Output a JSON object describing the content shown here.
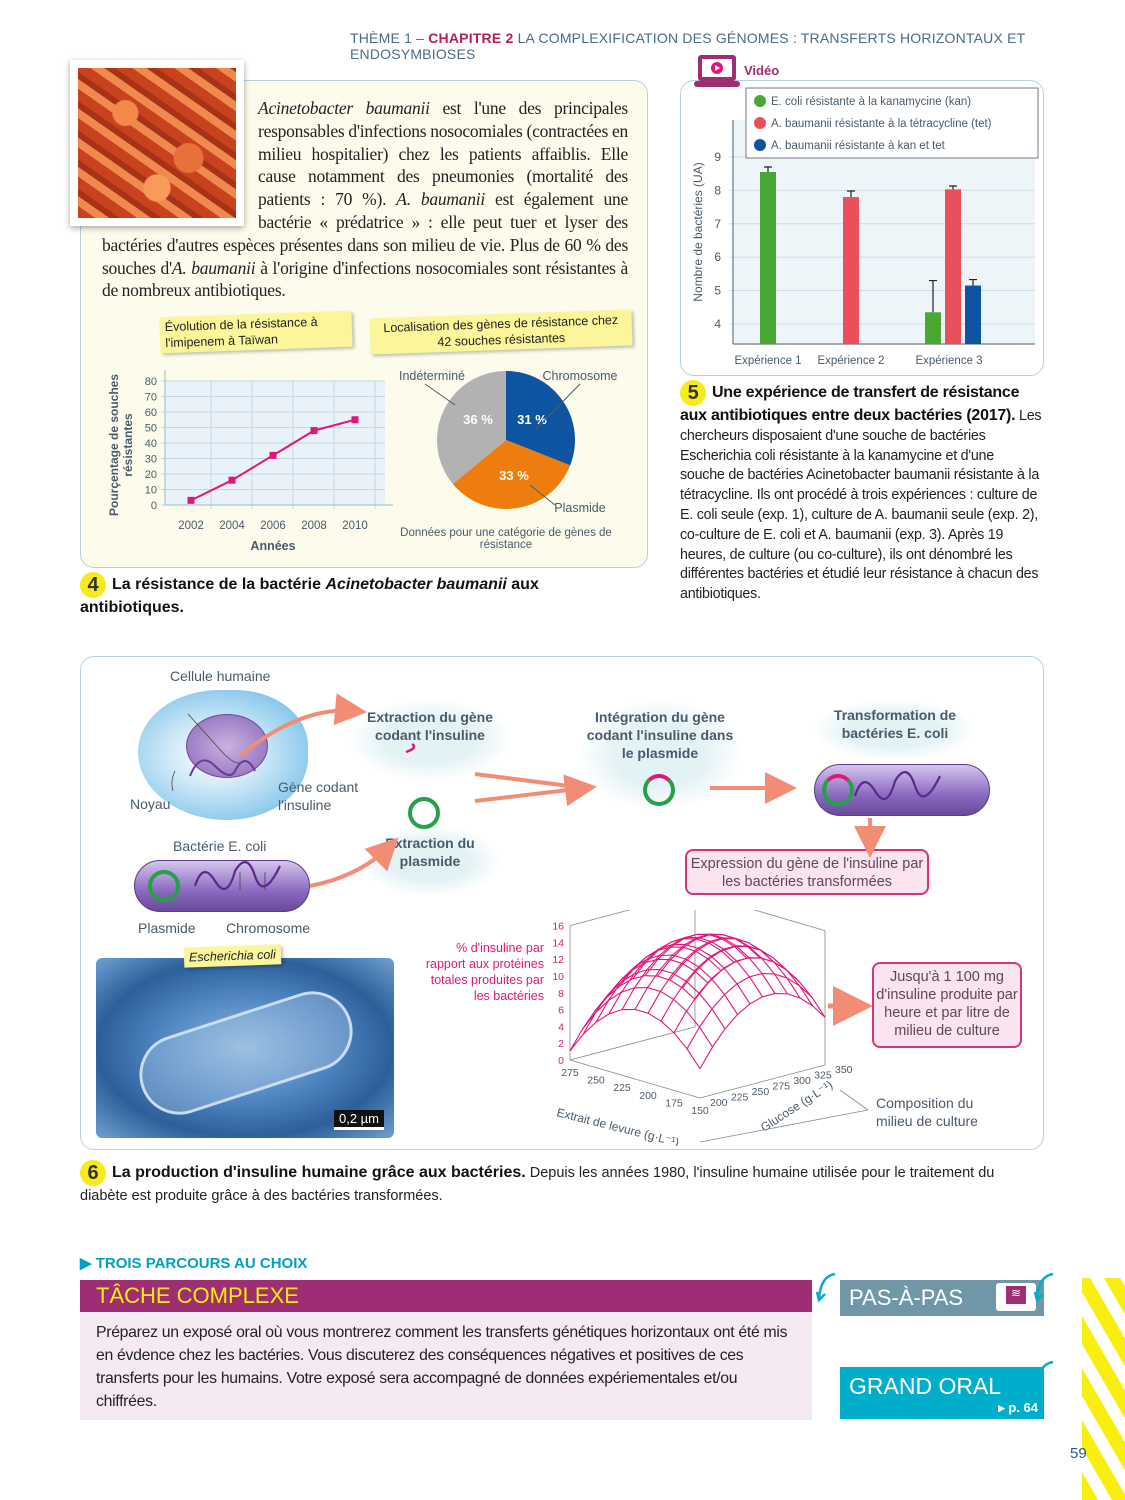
{
  "header": {
    "theme": "THÈME 1 – ",
    "chapter": "CHAPITRE 2",
    "title": " LA COMPLEXIFICATION DES GÉNOMES : TRANSFERTS HORIZONTAUX ET ENDOSYMBIOSES"
  },
  "doc4": {
    "text_parts": [
      "Acinetobacter baumanii",
      "est l'une des principales responsables d'infections nosocomiales (contractées en milieu hospitalier) chez les patients affaiblis. Elle cause notamment des pneumonies (mortalité des patients : 70 %).",
      "A. baumanii",
      "est également une bactérie « prédatrice » : elle peut tuer et lyser des bactéries d'autres espèces présentes dans son milieu de vie. Plus de 60 % des souches d'",
      "A. baumanii",
      "à l'origine d'infections nosocomiales sont résistantes à de nombreux antibiotiques."
    ],
    "number": "4",
    "caption_pre": "La résistance de la bactérie ",
    "caption_italic": "Acinetobacter baumanii",
    "caption_post": " aux antibiotiques."
  },
  "doc5": {
    "video_label": "Vidéo",
    "number": "5",
    "caption_bold": "Une expérience de transfert de résistance aux antibiotiques entre deux bactéries (2017).",
    "text": "Les chercheurs disposaient d'une souche de bactéries Escherichia coli résistante à la kanamycine et d'une souche de bactéries Acinetobacter baumanii résistante à la tétracycline. Ils ont procédé à trois expériences : culture de E. coli seule (exp. 1), culture de A. baumanii seule (exp. 2), co-culture de E. coli et A. baumanii (exp. 3). Après 19 heures, de culture (ou co-culture), ils ont dénombré les différentes bactéries et étudié leur résistance à chacun des antibiotiques."
  },
  "doc6": {
    "labels": {
      "cellule": "Cellule humaine",
      "noyau": "Noyau",
      "gene": "Gène codant l'insuline",
      "bacterie": "Bactérie E. coli",
      "plasmide": "Plasmide",
      "chromosome": "Chromosome",
      "photo_tag": "Escherichia coli",
      "scale": "0,2 µm"
    },
    "steps": {
      "extraction_gene": "Extraction du gène codant l'insuline",
      "extraction_plasmide": "Extraction du plasmide",
      "integration": "Intégration du gène codant l'insuline dans le plasmide",
      "transformation": "Transformation de bactéries E. coli",
      "expression": "Expression du gène de l'insuline par les bactéries transformées"
    },
    "result_box": "Jusqu'à 1 100 mg d'insuline produite par heure et par litre de milieu de culture",
    "composition": "Composition du milieu de culture",
    "number": "6",
    "caption_bold": "La production d'insuline humaine grâce aux bactéries.",
    "caption_text": " Depuis les années 1980, l'insuline humaine utilisée pour le traitement du diabète est produite grâce à des bactéries transformées."
  },
  "tasks": {
    "parcours": "TROIS PARCOURS AU CHOIX",
    "title": "TÂCHE COMPLEXE",
    "text": "Préparez un exposé oral où vous montrerez comment les transferts génétiques horizontaux ont été mis en évdence chez les bactéries. Vous discuterez des conséquences négatives et positives de ces transferts pour les humains. Votre exposé sera accompagné de données expériementales et/ou chiffrées.",
    "pas_a_pas": "PAS-À-PAS",
    "grand_oral": "GRAND ORAL",
    "grand_oral_ref": "▸ p. 64"
  },
  "page_number": "59",
  "colors": {
    "magenta": "#e0177a",
    "green": "#4aa832",
    "red": "#ea4f5a",
    "blue": "#0d55a0",
    "orange": "#ee7d0f",
    "gray": "#b2b2b2",
    "purple": "#9e2d73",
    "cyan": "#00aecb"
  },
  "chart_data": [
    {
      "type": "line",
      "title": "Évolution de la résistance à l'imipenem à Taïwan",
      "xlabel": "Années",
      "ylabel": "Pourçentage de souches résistantes",
      "x": [
        2002,
        2004,
        2006,
        2008,
        2010
      ],
      "y": [
        3,
        16,
        32,
        48,
        55
      ],
      "ylim": [
        0,
        80
      ],
      "yticks": [
        0,
        10,
        20,
        30,
        40,
        50,
        60,
        70,
        80
      ],
      "grid": true,
      "color": "#e0177a"
    },
    {
      "type": "pie",
      "title": "Localisation des gènes de résistance chez 42 souches résistantes",
      "note": "Données pour une catégorie de gènes de résistance",
      "slices": [
        {
          "label": "Chromosome",
          "value": 31,
          "text": "31 %",
          "color": "#0d55a0"
        },
        {
          "label": "Plasmide",
          "value": 33,
          "text": "33 %",
          "color": "#ee7d0f"
        },
        {
          "label": "Indéterminé",
          "value": 36,
          "text": "36 %",
          "color": "#b2b2b2"
        }
      ]
    },
    {
      "type": "bar",
      "ylabel": "Nombre de bactéries (UA)",
      "categories": [
        "Expérience 1",
        "Expérience 2",
        "Expérience 3"
      ],
      "ylim": [
        3.4,
        9.5
      ],
      "yticks": [
        4,
        5,
        6,
        7,
        8,
        9
      ],
      "grid": true,
      "legend": "top",
      "series": [
        {
          "name": "E. coli résistante à la kanamycine (kan)",
          "color": "#4aa832",
          "values": [
            8.55,
            null,
            4.35
          ],
          "errors": [
            0.15,
            null,
            0.95
          ]
        },
        {
          "name": "A. baumanii résistante à la tétracycline (tet)",
          "color": "#ea4f5a",
          "values": [
            null,
            7.8,
            8.03
          ],
          "errors": [
            null,
            0.18,
            0.1
          ]
        },
        {
          "name": "A. baumanii résistante à kan et tet",
          "color": "#0d55a0",
          "values": [
            null,
            null,
            5.15
          ],
          "errors": [
            null,
            null,
            0.18
          ]
        }
      ]
    },
    {
      "type": "surface",
      "zlabel": "% d'insuline par rapport aux protéines totales produites par les bactéries",
      "xlabel": "Extrait de levure (g·L⁻¹)",
      "ylabel": "Glucose (g·L⁻¹)",
      "zticks": [
        0,
        2,
        4,
        6,
        8,
        10,
        12,
        14,
        16
      ],
      "xticks": [
        275,
        250,
        225,
        200,
        175,
        150
      ],
      "yticks": [
        200,
        225,
        250,
        275,
        300,
        325,
        350
      ],
      "zmax": 15,
      "color": "#e0177a"
    }
  ]
}
